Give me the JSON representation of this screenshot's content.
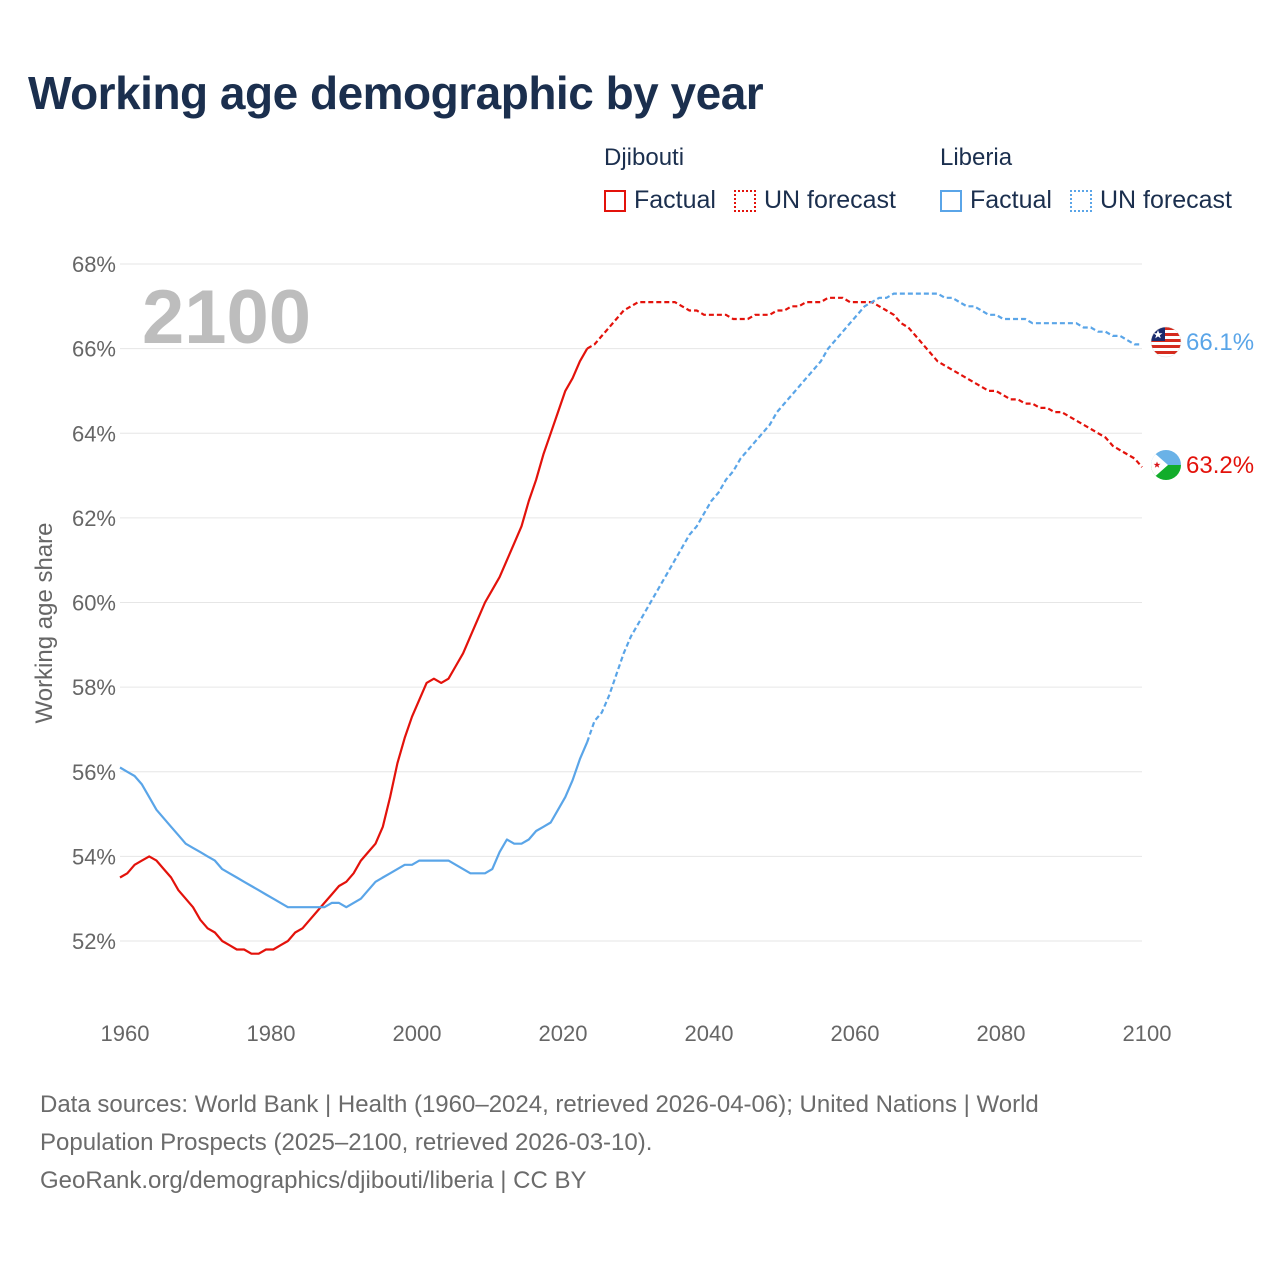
{
  "title": "Working age demographic by year",
  "legend": {
    "groups": [
      {
        "country": "Djibouti",
        "factual_label": "Factual",
        "forecast_label": "UN forecast",
        "color": "#e3120b"
      },
      {
        "country": "Liberia",
        "factual_label": "Factual",
        "forecast_label": "UN forecast",
        "color": "#5aa5e8"
      }
    ]
  },
  "footer": {
    "line1": "Data sources: World Bank | Health (1960–2024, retrieved 2026-04-06); United Nations | World",
    "line2": "Population Prospects (2025–2100, retrieved 2026-03-10).",
    "line3": "GeoRank.org/demographics/djibouti/liberia | CC BY"
  },
  "chart_data": {
    "type": "line",
    "ylabel": "Working age share",
    "xlabel": "",
    "year_watermark": "2100",
    "xlim": [
      1960,
      2100
    ],
    "ylim": [
      50.9,
      68
    ],
    "x_ticks": [
      "1960",
      "1980",
      "2000",
      "2020",
      "2040",
      "2060",
      "2080",
      "2100"
    ],
    "y_ticks": [
      "52%",
      "54%",
      "56%",
      "58%",
      "60%",
      "62%",
      "64%",
      "66%",
      "68%"
    ],
    "y_tick_values": [
      52,
      54,
      56,
      58,
      60,
      62,
      64,
      66,
      68
    ],
    "factual_end_year": 2024,
    "series": [
      {
        "name": "Djibouti",
        "color": "#e3120b",
        "end_label": "63.2%",
        "points": [
          [
            1960,
            53.5
          ],
          [
            1961,
            53.6
          ],
          [
            1962,
            53.8
          ],
          [
            1963,
            53.9
          ],
          [
            1964,
            54.0
          ],
          [
            1965,
            53.9
          ],
          [
            1966,
            53.7
          ],
          [
            1967,
            53.5
          ],
          [
            1968,
            53.2
          ],
          [
            1969,
            53.0
          ],
          [
            1970,
            52.8
          ],
          [
            1971,
            52.5
          ],
          [
            1972,
            52.3
          ],
          [
            1973,
            52.2
          ],
          [
            1974,
            52.0
          ],
          [
            1975,
            51.9
          ],
          [
            1976,
            51.8
          ],
          [
            1977,
            51.8
          ],
          [
            1978,
            51.7
          ],
          [
            1979,
            51.7
          ],
          [
            1980,
            51.8
          ],
          [
            1981,
            51.8
          ],
          [
            1982,
            51.9
          ],
          [
            1983,
            52.0
          ],
          [
            1984,
            52.2
          ],
          [
            1985,
            52.3
          ],
          [
            1986,
            52.5
          ],
          [
            1987,
            52.7
          ],
          [
            1988,
            52.9
          ],
          [
            1989,
            53.1
          ],
          [
            1990,
            53.3
          ],
          [
            1991,
            53.4
          ],
          [
            1992,
            53.6
          ],
          [
            1993,
            53.9
          ],
          [
            1994,
            54.1
          ],
          [
            1995,
            54.3
          ],
          [
            1996,
            54.7
          ],
          [
            1997,
            55.4
          ],
          [
            1998,
            56.2
          ],
          [
            1999,
            56.8
          ],
          [
            2000,
            57.3
          ],
          [
            2001,
            57.7
          ],
          [
            2002,
            58.1
          ],
          [
            2003,
            58.2
          ],
          [
            2004,
            58.1
          ],
          [
            2005,
            58.2
          ],
          [
            2006,
            58.5
          ],
          [
            2007,
            58.8
          ],
          [
            2008,
            59.2
          ],
          [
            2009,
            59.6
          ],
          [
            2010,
            60.0
          ],
          [
            2011,
            60.3
          ],
          [
            2012,
            60.6
          ],
          [
            2013,
            61.0
          ],
          [
            2014,
            61.4
          ],
          [
            2015,
            61.8
          ],
          [
            2016,
            62.4
          ],
          [
            2017,
            62.9
          ],
          [
            2018,
            63.5
          ],
          [
            2019,
            64.0
          ],
          [
            2020,
            64.5
          ],
          [
            2021,
            65.0
          ],
          [
            2022,
            65.3
          ],
          [
            2023,
            65.7
          ],
          [
            2024,
            66.0
          ],
          [
            2025,
            66.1
          ],
          [
            2026,
            66.3
          ],
          [
            2027,
            66.5
          ],
          [
            2028,
            66.7
          ],
          [
            2029,
            66.9
          ],
          [
            2030,
            67.0
          ],
          [
            2031,
            67.1
          ],
          [
            2032,
            67.1
          ],
          [
            2033,
            67.1
          ],
          [
            2034,
            67.1
          ],
          [
            2035,
            67.1
          ],
          [
            2036,
            67.1
          ],
          [
            2037,
            67.0
          ],
          [
            2038,
            66.9
          ],
          [
            2039,
            66.9
          ],
          [
            2040,
            66.8
          ],
          [
            2041,
            66.8
          ],
          [
            2042,
            66.8
          ],
          [
            2043,
            66.8
          ],
          [
            2044,
            66.7
          ],
          [
            2045,
            66.7
          ],
          [
            2046,
            66.7
          ],
          [
            2047,
            66.8
          ],
          [
            2048,
            66.8
          ],
          [
            2049,
            66.8
          ],
          [
            2050,
            66.9
          ],
          [
            2051,
            66.9
          ],
          [
            2052,
            67.0
          ],
          [
            2053,
            67.0
          ],
          [
            2054,
            67.1
          ],
          [
            2055,
            67.1
          ],
          [
            2056,
            67.1
          ],
          [
            2057,
            67.2
          ],
          [
            2058,
            67.2
          ],
          [
            2059,
            67.2
          ],
          [
            2060,
            67.1
          ],
          [
            2061,
            67.1
          ],
          [
            2062,
            67.1
          ],
          [
            2063,
            67.1
          ],
          [
            2064,
            67.0
          ],
          [
            2065,
            66.9
          ],
          [
            2066,
            66.8
          ],
          [
            2067,
            66.6
          ],
          [
            2068,
            66.5
          ],
          [
            2069,
            66.3
          ],
          [
            2070,
            66.1
          ],
          [
            2071,
            65.9
          ],
          [
            2072,
            65.7
          ],
          [
            2073,
            65.6
          ],
          [
            2074,
            65.5
          ],
          [
            2075,
            65.4
          ],
          [
            2076,
            65.3
          ],
          [
            2077,
            65.2
          ],
          [
            2078,
            65.1
          ],
          [
            2079,
            65.0
          ],
          [
            2080,
            65.0
          ],
          [
            2081,
            64.9
          ],
          [
            2082,
            64.8
          ],
          [
            2083,
            64.8
          ],
          [
            2084,
            64.7
          ],
          [
            2085,
            64.7
          ],
          [
            2086,
            64.6
          ],
          [
            2087,
            64.6
          ],
          [
            2088,
            64.5
          ],
          [
            2089,
            64.5
          ],
          [
            2090,
            64.4
          ],
          [
            2091,
            64.3
          ],
          [
            2092,
            64.2
          ],
          [
            2093,
            64.1
          ],
          [
            2094,
            64.0
          ],
          [
            2095,
            63.9
          ],
          [
            2096,
            63.7
          ],
          [
            2097,
            63.6
          ],
          [
            2098,
            63.5
          ],
          [
            2099,
            63.4
          ],
          [
            2100,
            63.2
          ]
        ]
      },
      {
        "name": "Liberia",
        "color": "#5aa5e8",
        "end_label": "66.1%",
        "points": [
          [
            1960,
            56.1
          ],
          [
            1961,
            56.0
          ],
          [
            1962,
            55.9
          ],
          [
            1963,
            55.7
          ],
          [
            1964,
            55.4
          ],
          [
            1965,
            55.1
          ],
          [
            1966,
            54.9
          ],
          [
            1967,
            54.7
          ],
          [
            1968,
            54.5
          ],
          [
            1969,
            54.3
          ],
          [
            1970,
            54.2
          ],
          [
            1971,
            54.1
          ],
          [
            1972,
            54.0
          ],
          [
            1973,
            53.9
          ],
          [
            1974,
            53.7
          ],
          [
            1975,
            53.6
          ],
          [
            1976,
            53.5
          ],
          [
            1977,
            53.4
          ],
          [
            1978,
            53.3
          ],
          [
            1979,
            53.2
          ],
          [
            1980,
            53.1
          ],
          [
            1981,
            53.0
          ],
          [
            1982,
            52.9
          ],
          [
            1983,
            52.8
          ],
          [
            1984,
            52.8
          ],
          [
            1985,
            52.8
          ],
          [
            1986,
            52.8
          ],
          [
            1987,
            52.8
          ],
          [
            1988,
            52.8
          ],
          [
            1989,
            52.9
          ],
          [
            1990,
            52.9
          ],
          [
            1991,
            52.8
          ],
          [
            1992,
            52.9
          ],
          [
            1993,
            53.0
          ],
          [
            1994,
            53.2
          ],
          [
            1995,
            53.4
          ],
          [
            1996,
            53.5
          ],
          [
            1997,
            53.6
          ],
          [
            1998,
            53.7
          ],
          [
            1999,
            53.8
          ],
          [
            2000,
            53.8
          ],
          [
            2001,
            53.9
          ],
          [
            2002,
            53.9
          ],
          [
            2003,
            53.9
          ],
          [
            2004,
            53.9
          ],
          [
            2005,
            53.9
          ],
          [
            2006,
            53.8
          ],
          [
            2007,
            53.7
          ],
          [
            2008,
            53.6
          ],
          [
            2009,
            53.6
          ],
          [
            2010,
            53.6
          ],
          [
            2011,
            53.7
          ],
          [
            2012,
            54.1
          ],
          [
            2013,
            54.4
          ],
          [
            2014,
            54.3
          ],
          [
            2015,
            54.3
          ],
          [
            2016,
            54.4
          ],
          [
            2017,
            54.6
          ],
          [
            2018,
            54.7
          ],
          [
            2019,
            54.8
          ],
          [
            2020,
            55.1
          ],
          [
            2021,
            55.4
          ],
          [
            2022,
            55.8
          ],
          [
            2023,
            56.3
          ],
          [
            2024,
            56.7
          ],
          [
            2025,
            57.2
          ],
          [
            2026,
            57.4
          ],
          [
            2027,
            57.8
          ],
          [
            2028,
            58.3
          ],
          [
            2029,
            58.8
          ],
          [
            2030,
            59.2
          ],
          [
            2031,
            59.5
          ],
          [
            2032,
            59.8
          ],
          [
            2033,
            60.1
          ],
          [
            2034,
            60.4
          ],
          [
            2035,
            60.7
          ],
          [
            2036,
            61.0
          ],
          [
            2037,
            61.3
          ],
          [
            2038,
            61.6
          ],
          [
            2039,
            61.8
          ],
          [
            2040,
            62.1
          ],
          [
            2041,
            62.4
          ],
          [
            2042,
            62.6
          ],
          [
            2043,
            62.9
          ],
          [
            2044,
            63.1
          ],
          [
            2045,
            63.4
          ],
          [
            2046,
            63.6
          ],
          [
            2047,
            63.8
          ],
          [
            2048,
            64.0
          ],
          [
            2049,
            64.2
          ],
          [
            2050,
            64.5
          ],
          [
            2051,
            64.7
          ],
          [
            2052,
            64.9
          ],
          [
            2053,
            65.1
          ],
          [
            2054,
            65.3
          ],
          [
            2055,
            65.5
          ],
          [
            2056,
            65.7
          ],
          [
            2057,
            66.0
          ],
          [
            2058,
            66.2
          ],
          [
            2059,
            66.4
          ],
          [
            2060,
            66.6
          ],
          [
            2061,
            66.8
          ],
          [
            2062,
            67.0
          ],
          [
            2063,
            67.1
          ],
          [
            2064,
            67.2
          ],
          [
            2065,
            67.2
          ],
          [
            2066,
            67.3
          ],
          [
            2067,
            67.3
          ],
          [
            2068,
            67.3
          ],
          [
            2069,
            67.3
          ],
          [
            2070,
            67.3
          ],
          [
            2071,
            67.3
          ],
          [
            2072,
            67.3
          ],
          [
            2073,
            67.2
          ],
          [
            2074,
            67.2
          ],
          [
            2075,
            67.1
          ],
          [
            2076,
            67.0
          ],
          [
            2077,
            67.0
          ],
          [
            2078,
            66.9
          ],
          [
            2079,
            66.8
          ],
          [
            2080,
            66.8
          ],
          [
            2081,
            66.7
          ],
          [
            2082,
            66.7
          ],
          [
            2083,
            66.7
          ],
          [
            2084,
            66.7
          ],
          [
            2085,
            66.6
          ],
          [
            2086,
            66.6
          ],
          [
            2087,
            66.6
          ],
          [
            2088,
            66.6
          ],
          [
            2089,
            66.6
          ],
          [
            2090,
            66.6
          ],
          [
            2091,
            66.6
          ],
          [
            2092,
            66.5
          ],
          [
            2093,
            66.5
          ],
          [
            2094,
            66.4
          ],
          [
            2095,
            66.4
          ],
          [
            2096,
            66.3
          ],
          [
            2097,
            66.3
          ],
          [
            2098,
            66.2
          ],
          [
            2099,
            66.1
          ],
          [
            2100,
            66.1
          ]
        ]
      }
    ]
  }
}
